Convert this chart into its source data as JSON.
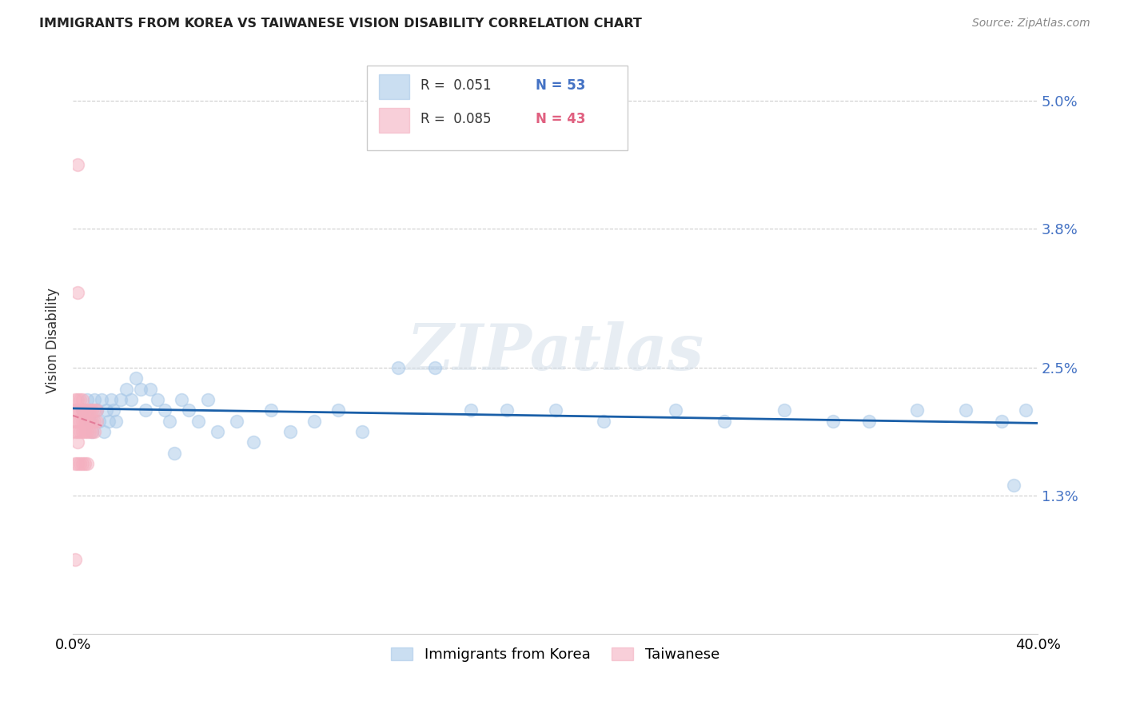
{
  "title": "IMMIGRANTS FROM KOREA VS TAIWANESE VISION DISABILITY CORRELATION CHART",
  "source": "Source: ZipAtlas.com",
  "ylabel": "Vision Disability",
  "ytick_labels": [
    "5.0%",
    "3.8%",
    "2.5%",
    "1.3%"
  ],
  "ytick_values": [
    0.05,
    0.038,
    0.025,
    0.013
  ],
  "xlim": [
    0.0,
    0.4
  ],
  "ylim": [
    0.0,
    0.055
  ],
  "korea_R": 0.051,
  "korea_N": 53,
  "taiwanese_R": 0.085,
  "taiwanese_N": 43,
  "watermark": "ZIPatlas",
  "korea_color": "#a8c8e8",
  "taiwanese_color": "#f4b0c0",
  "korea_line_color": "#1a5fa8",
  "taiwanese_line_color": "#e07090",
  "korea_x": [
    0.004,
    0.006,
    0.007,
    0.008,
    0.009,
    0.01,
    0.011,
    0.012,
    0.013,
    0.014,
    0.015,
    0.016,
    0.017,
    0.018,
    0.02,
    0.022,
    0.024,
    0.026,
    0.028,
    0.03,
    0.032,
    0.035,
    0.038,
    0.04,
    0.042,
    0.045,
    0.048,
    0.052,
    0.056,
    0.06,
    0.068,
    0.075,
    0.082,
    0.09,
    0.1,
    0.11,
    0.12,
    0.135,
    0.15,
    0.165,
    0.18,
    0.2,
    0.22,
    0.25,
    0.27,
    0.295,
    0.315,
    0.33,
    0.35,
    0.37,
    0.385,
    0.39,
    0.395
  ],
  "korea_y": [
    0.021,
    0.022,
    0.02,
    0.019,
    0.022,
    0.021,
    0.02,
    0.022,
    0.019,
    0.021,
    0.02,
    0.022,
    0.021,
    0.02,
    0.022,
    0.023,
    0.022,
    0.024,
    0.023,
    0.021,
    0.023,
    0.022,
    0.021,
    0.02,
    0.017,
    0.022,
    0.021,
    0.02,
    0.022,
    0.019,
    0.02,
    0.018,
    0.021,
    0.019,
    0.02,
    0.021,
    0.019,
    0.025,
    0.025,
    0.021,
    0.021,
    0.021,
    0.02,
    0.021,
    0.02,
    0.021,
    0.02,
    0.02,
    0.021,
    0.021,
    0.02,
    0.014,
    0.021
  ],
  "taiwanese_x": [
    0.001,
    0.001,
    0.001,
    0.001,
    0.002,
    0.002,
    0.002,
    0.002,
    0.002,
    0.003,
    0.003,
    0.003,
    0.003,
    0.004,
    0.004,
    0.004,
    0.004,
    0.005,
    0.005,
    0.005,
    0.006,
    0.006,
    0.006,
    0.007,
    0.007,
    0.007,
    0.008,
    0.008,
    0.008,
    0.009,
    0.009,
    0.009,
    0.01,
    0.01,
    0.001,
    0.002,
    0.003,
    0.004,
    0.005,
    0.006,
    0.002,
    0.002,
    0.001
  ],
  "taiwanese_y": [
    0.021,
    0.022,
    0.02,
    0.019,
    0.022,
    0.021,
    0.02,
    0.019,
    0.018,
    0.021,
    0.02,
    0.019,
    0.022,
    0.021,
    0.02,
    0.019,
    0.022,
    0.02,
    0.021,
    0.019,
    0.021,
    0.02,
    0.019,
    0.02,
    0.021,
    0.019,
    0.02,
    0.021,
    0.019,
    0.02,
    0.021,
    0.019,
    0.02,
    0.021,
    0.016,
    0.016,
    0.016,
    0.016,
    0.016,
    0.016,
    0.044,
    0.032,
    0.007
  ]
}
